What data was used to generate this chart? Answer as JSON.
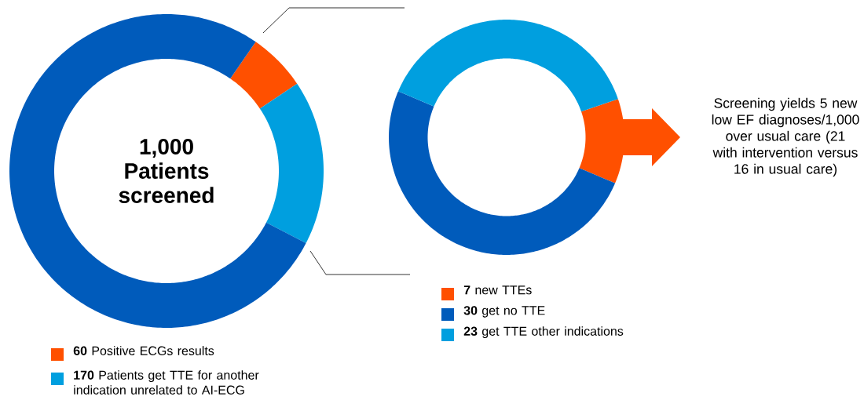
{
  "chart_data": [
    {
      "type": "donut",
      "title": "1,000 Patients screened",
      "categories": [
        "**60** Positive ECGs results",
        "**170** Patients get TTE for another indication unrelated to AI-ECG",
        null
      ],
      "values": [
        60,
        170,
        770
      ],
      "colors": [
        "#ff5000",
        "#009fdf",
        "#005bbb"
      ],
      "legend": "bottom"
    },
    {
      "type": "donut",
      "categories": [
        "**7** new TTEs",
        "**30** get no TTE",
        "**23** get TTE other indications"
      ],
      "values": [
        7,
        30,
        23
      ],
      "colors": [
        "#ff5000",
        "#005bbb",
        "#009fdf"
      ],
      "legend": "bottom",
      "annotations": [
        "Screening yields 5 new low EF diagnoses/1,000 over usual care (21 with intervention versus 16 in usual care)"
      ]
    }
  ]
}
